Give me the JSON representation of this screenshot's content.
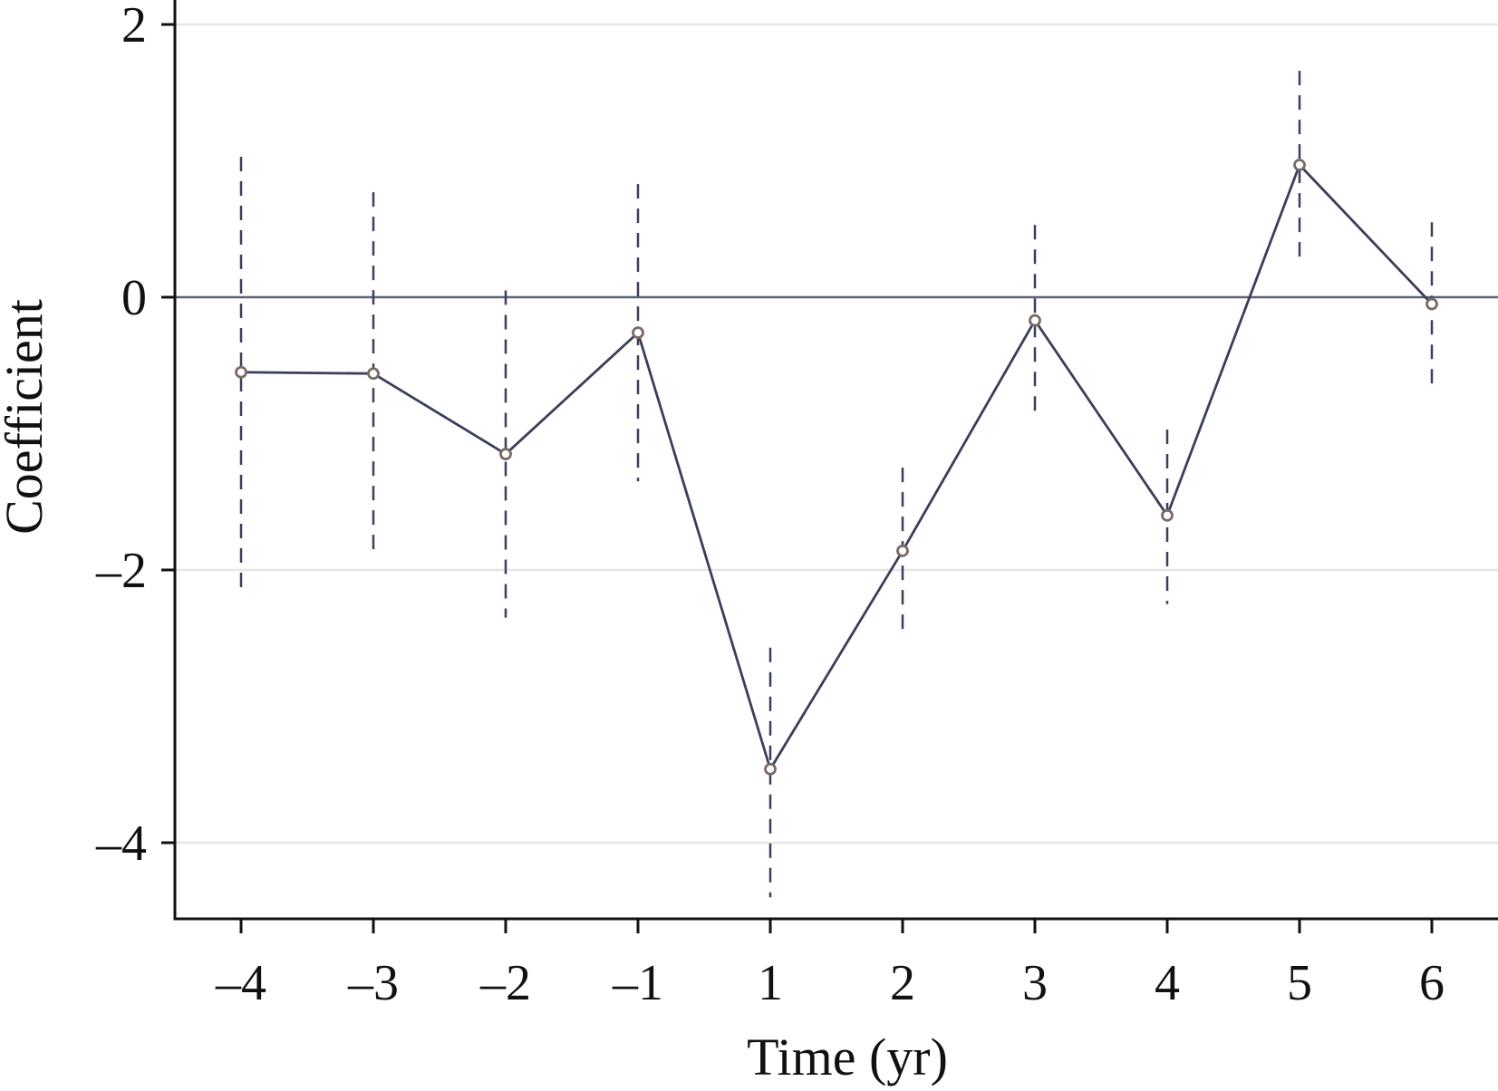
{
  "chart_data": {
    "type": "line",
    "xlabel": "Time (yr)",
    "ylabel": "Coefficient",
    "x_categories": [
      "–4",
      "–3",
      "–2",
      "–1",
      "1",
      "2",
      "3",
      "4",
      "5",
      "6"
    ],
    "y_ticks": [
      2,
      0,
      -2,
      -4
    ],
    "y_tick_labels": [
      "2",
      "0",
      "–2",
      "–4"
    ],
    "ylim": [
      -4.56,
      2.2
    ],
    "grid": true,
    "reference_line": 0,
    "series": [
      {
        "values": [
          -0.55,
          -0.56,
          -1.15,
          -0.26,
          -3.46,
          -1.86,
          -0.17,
          -1.6,
          0.97,
          -0.05
        ],
        "ci_lower": [
          -2.15,
          -1.9,
          -2.35,
          -1.35,
          -4.4,
          -2.5,
          -0.85,
          -2.25,
          0.28,
          -0.65
        ],
        "ci_upper": [
          1.03,
          0.77,
          0.05,
          0.83,
          -2.57,
          -1.25,
          0.53,
          -0.97,
          1.66,
          0.55
        ]
      }
    ],
    "colors": {
      "line": "#3a3f5a",
      "ci": "#3a3f5a",
      "marker_edge": "#7a6a64",
      "grid": "#e6e6e6",
      "zero_line": "#5a6278",
      "axis": "#111111"
    }
  }
}
